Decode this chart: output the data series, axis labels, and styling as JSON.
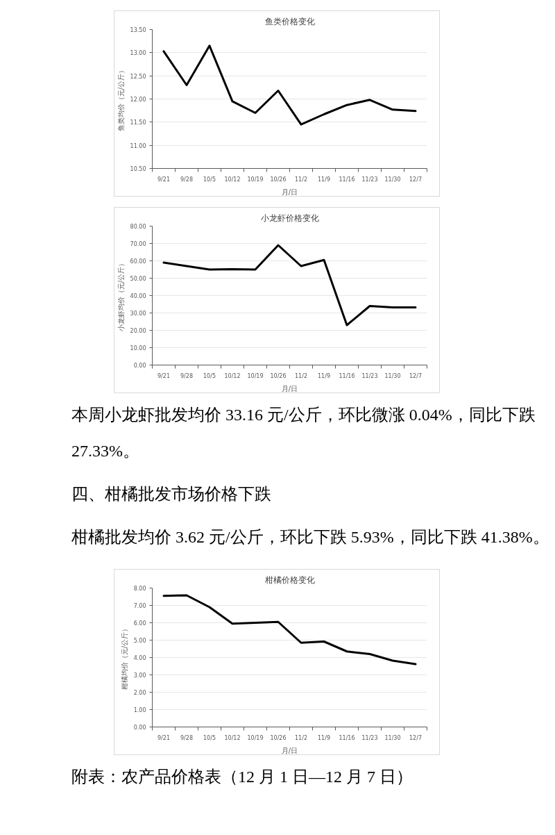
{
  "chart_data": [
    {
      "type": "line",
      "title": "鱼类价格变化",
      "xlabel": "月/日",
      "ylabel": "鱼类均价（元/公斤）",
      "categories": [
        "9/21",
        "9/28",
        "10/5",
        "10/12",
        "10/19",
        "10/26",
        "11/2",
        "11/9",
        "11/16",
        "11/23",
        "11/30",
        "12/7"
      ],
      "series": [
        {
          "color": "#000000",
          "values": [
            13.03,
            12.3,
            13.15,
            11.95,
            11.7,
            12.18,
            11.45,
            11.67,
            11.87,
            11.98,
            11.77,
            11.74
          ]
        }
      ],
      "ylim": [
        10.5,
        13.5
      ],
      "yticks": [
        {
          "value": 10.5,
          "label": "10.50"
        },
        {
          "value": 11,
          "label": "11.00"
        },
        {
          "value": 11.5,
          "label": "11.50"
        },
        {
          "value": 12,
          "label": "12.00"
        },
        {
          "value": 12.5,
          "label": "12.50"
        },
        {
          "value": 13,
          "label": "13.00"
        },
        {
          "value": 13.5,
          "label": "13.50"
        }
      ],
      "grid": "y"
    },
    {
      "type": "line",
      "title": "小龙虾价格变化",
      "xlabel": "月/日",
      "ylabel": "小龙虾均价（元/公斤）",
      "categories": [
        "9/21",
        "9/28",
        "10/5",
        "10/12",
        "10/19",
        "10/26",
        "11/2",
        "11/9",
        "11/16",
        "11/23",
        "11/30",
        "12/7"
      ],
      "series": [
        {
          "color": "#000000",
          "values": [
            59,
            57,
            55,
            55.2,
            55,
            69,
            57,
            60.5,
            23,
            34,
            33.2,
            33.2
          ]
        }
      ],
      "ylim": [
        0,
        80
      ],
      "yticks": [
        {
          "value": 0,
          "label": "0.00"
        },
        {
          "value": 10,
          "label": "10.00"
        },
        {
          "value": 20,
          "label": "20.00"
        },
        {
          "value": 30,
          "label": "30.00"
        },
        {
          "value": 40,
          "label": "40.00"
        },
        {
          "value": 50,
          "label": "50.00"
        },
        {
          "value": 60,
          "label": "60.00"
        },
        {
          "value": 70,
          "label": "70.00"
        },
        {
          "value": 80,
          "label": "80.00"
        }
      ],
      "grid": "y",
      "annotations": [
        "本周小龙虾批发均价 33.16 元/公斤，环比微涨 0.04%，同比下跌 27.33%。",
        "四、柑橘批发市场价格下跌",
        "柑橘批发均价 3.62 元/公斤，环比下跌 5.93%，同比下跌 41.38%。"
      ]
    },
    {
      "type": "line",
      "title": "柑橘价格变化",
      "xlabel": "月/日",
      "ylabel": "柑橘均价（元/公斤）",
      "categories": [
        "9/21",
        "9/28",
        "10/5",
        "10/12",
        "10/19",
        "10/26",
        "11/2",
        "11/9",
        "11/16",
        "11/23",
        "11/30",
        "12/7"
      ],
      "series": [
        {
          "color": "#000000",
          "values": [
            7.55,
            7.58,
            6.9,
            5.95,
            6.0,
            6.05,
            4.85,
            4.92,
            4.35,
            4.2,
            3.82,
            3.62
          ]
        }
      ],
      "ylim": [
        0,
        8
      ],
      "yticks": [
        {
          "value": 0,
          "label": "0.00"
        },
        {
          "value": 1,
          "label": "1.00"
        },
        {
          "value": 2,
          "label": "2.00"
        },
        {
          "value": 3,
          "label": "3.00"
        },
        {
          "value": 4,
          "label": "4.00"
        },
        {
          "value": 5,
          "label": "5.00"
        },
        {
          "value": 6,
          "label": "6.00"
        },
        {
          "value": 7,
          "label": "7.00"
        },
        {
          "value": 8,
          "label": "8.00"
        }
      ],
      "grid": "y",
      "annotations": [
        "附表：农产品价格表（12 月 1 日—12 月 7 日）"
      ]
    }
  ]
}
